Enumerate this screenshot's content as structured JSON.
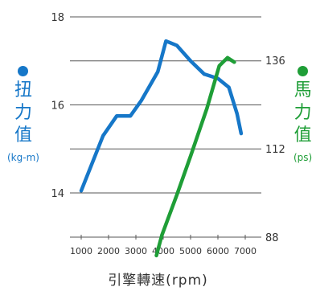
{
  "chart_data": {
    "type": "line",
    "x_ticks": [
      1000,
      2000,
      3000,
      4000,
      5000,
      6000,
      7000
    ],
    "xlim": [
      1000,
      7000
    ],
    "xlabel": "引擎轉速(rpm)",
    "left_axis": {
      "label_chars": [
        "扭",
        "力",
        "值"
      ],
      "unit": "(kg-m)",
      "ticks": [
        18,
        16,
        14
      ],
      "ylim": [
        14,
        18
      ],
      "color": "#1677c8"
    },
    "right_axis": {
      "label_chars": [
        "馬",
        "力",
        "值"
      ],
      "unit": "(ps)",
      "ticks": [
        136,
        112,
        88
      ],
      "ylim": [
        88,
        136
      ],
      "color": "#1f9e37"
    },
    "series": [
      {
        "axis": "left",
        "color": "#1677c8",
        "points": [
          [
            1000,
            14.05
          ],
          [
            1800,
            15.3
          ],
          [
            2300,
            15.75
          ],
          [
            2800,
            15.75
          ],
          [
            3200,
            16.1
          ],
          [
            3800,
            16.75
          ],
          [
            4100,
            17.45
          ],
          [
            4500,
            17.35
          ],
          [
            5000,
            17.0
          ],
          [
            5500,
            16.7
          ],
          [
            6000,
            16.6
          ],
          [
            6400,
            16.4
          ],
          [
            6700,
            15.8
          ],
          [
            6850,
            15.35
          ]
        ]
      },
      {
        "axis": "right",
        "color": "#1f9e37",
        "points": [
          [
            3750,
            83
          ],
          [
            3950,
            88.5
          ],
          [
            4500,
            99.5
          ],
          [
            5000,
            110
          ],
          [
            5600,
            123
          ],
          [
            6050,
            134.5
          ],
          [
            6350,
            136.7
          ],
          [
            6600,
            135.5
          ]
        ]
      }
    ],
    "grid": true
  }
}
